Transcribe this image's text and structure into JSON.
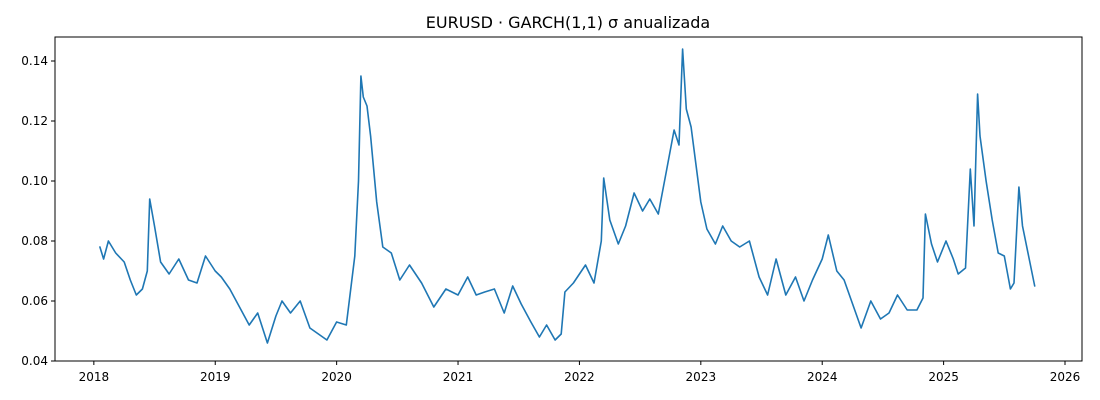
{
  "chart_data": {
    "type": "line",
    "title": "EURUSD · GARCH(1,1) σ anualizada",
    "xlabel": "",
    "ylabel": "",
    "grid": false,
    "legend": "none",
    "xlim": [
      2017.68,
      2026.14
    ],
    "ylim": [
      0.04,
      0.148
    ],
    "x_ticks": [
      2018,
      2019,
      2020,
      2021,
      2022,
      2023,
      2024,
      2025,
      2026
    ],
    "x_tick_labels": [
      "2018",
      "2019",
      "2020",
      "2021",
      "2022",
      "2023",
      "2024",
      "2025",
      "2026"
    ],
    "y_ticks": [
      0.04,
      0.06,
      0.08,
      0.1,
      0.12,
      0.14
    ],
    "y_tick_labels": [
      "0.04",
      "0.06",
      "0.08",
      "0.10",
      "0.12",
      "0.14"
    ],
    "line_color": "#1f77b4",
    "series": [
      {
        "x": [
          2018.05,
          2018.08,
          2018.12,
          2018.18,
          2018.25,
          2018.3,
          2018.35,
          2018.4,
          2018.44,
          2018.46,
          2018.5,
          2018.55,
          2018.62,
          2018.7,
          2018.78,
          2018.85,
          2018.92,
          2019.0,
          2019.05,
          2019.12,
          2019.2,
          2019.28,
          2019.35,
          2019.43,
          2019.5,
          2019.55,
          2019.62,
          2019.7,
          2019.78,
          2019.85,
          2019.92,
          2020.0,
          2020.08,
          2020.15,
          2020.18,
          2020.2,
          2020.22,
          2020.25,
          2020.28,
          2020.33,
          2020.38,
          2020.45,
          2020.52,
          2020.6,
          2020.7,
          2020.8,
          2020.9,
          2021.0,
          2021.08,
          2021.15,
          2021.22,
          2021.3,
          2021.38,
          2021.45,
          2021.52,
          2021.6,
          2021.67,
          2021.73,
          2021.8,
          2021.85,
          2021.88,
          2021.95,
          2022.05,
          2022.12,
          2022.18,
          2022.2,
          2022.25,
          2022.32,
          2022.38,
          2022.45,
          2022.52,
          2022.58,
          2022.65,
          2022.72,
          2022.78,
          2022.82,
          2022.85,
          2022.88,
          2022.92,
          2023.0,
          2023.05,
          2023.12,
          2023.18,
          2023.25,
          2023.32,
          2023.4,
          2023.48,
          2023.55,
          2023.62,
          2023.7,
          2023.78,
          2023.85,
          2023.92,
          2024.0,
          2024.05,
          2024.12,
          2024.18,
          2024.25,
          2024.32,
          2024.4,
          2024.48,
          2024.55,
          2024.62,
          2024.7,
          2024.78,
          2024.83,
          2024.85,
          2024.9,
          2024.95,
          2025.02,
          2025.08,
          2025.12,
          2025.18,
          2025.22,
          2025.25,
          2025.28,
          2025.3,
          2025.35,
          2025.4,
          2025.45,
          2025.5,
          2025.55,
          2025.58,
          2025.62,
          2025.65,
          2025.7,
          2025.75
        ],
        "y": [
          0.078,
          0.074,
          0.08,
          0.076,
          0.073,
          0.067,
          0.062,
          0.064,
          0.07,
          0.094,
          0.085,
          0.073,
          0.069,
          0.074,
          0.067,
          0.066,
          0.075,
          0.07,
          0.068,
          0.064,
          0.058,
          0.052,
          0.056,
          0.046,
          0.055,
          0.06,
          0.056,
          0.06,
          0.051,
          0.049,
          0.047,
          0.053,
          0.052,
          0.075,
          0.1,
          0.135,
          0.128,
          0.125,
          0.115,
          0.093,
          0.078,
          0.076,
          0.067,
          0.072,
          0.066,
          0.058,
          0.064,
          0.062,
          0.068,
          0.062,
          0.063,
          0.064,
          0.056,
          0.065,
          0.059,
          0.053,
          0.048,
          0.052,
          0.047,
          0.049,
          0.063,
          0.066,
          0.072,
          0.066,
          0.08,
          0.101,
          0.087,
          0.079,
          0.085,
          0.096,
          0.09,
          0.094,
          0.089,
          0.104,
          0.117,
          0.112,
          0.144,
          0.124,
          0.118,
          0.093,
          0.084,
          0.079,
          0.085,
          0.08,
          0.078,
          0.08,
          0.068,
          0.062,
          0.074,
          0.062,
          0.068,
          0.06,
          0.067,
          0.074,
          0.082,
          0.07,
          0.067,
          0.059,
          0.051,
          0.06,
          0.054,
          0.056,
          0.062,
          0.057,
          0.057,
          0.061,
          0.089,
          0.079,
          0.073,
          0.08,
          0.074,
          0.069,
          0.071,
          0.104,
          0.085,
          0.129,
          0.115,
          0.1,
          0.087,
          0.076,
          0.075,
          0.064,
          0.066,
          0.098,
          0.085,
          0.075,
          0.065
        ]
      }
    ]
  }
}
